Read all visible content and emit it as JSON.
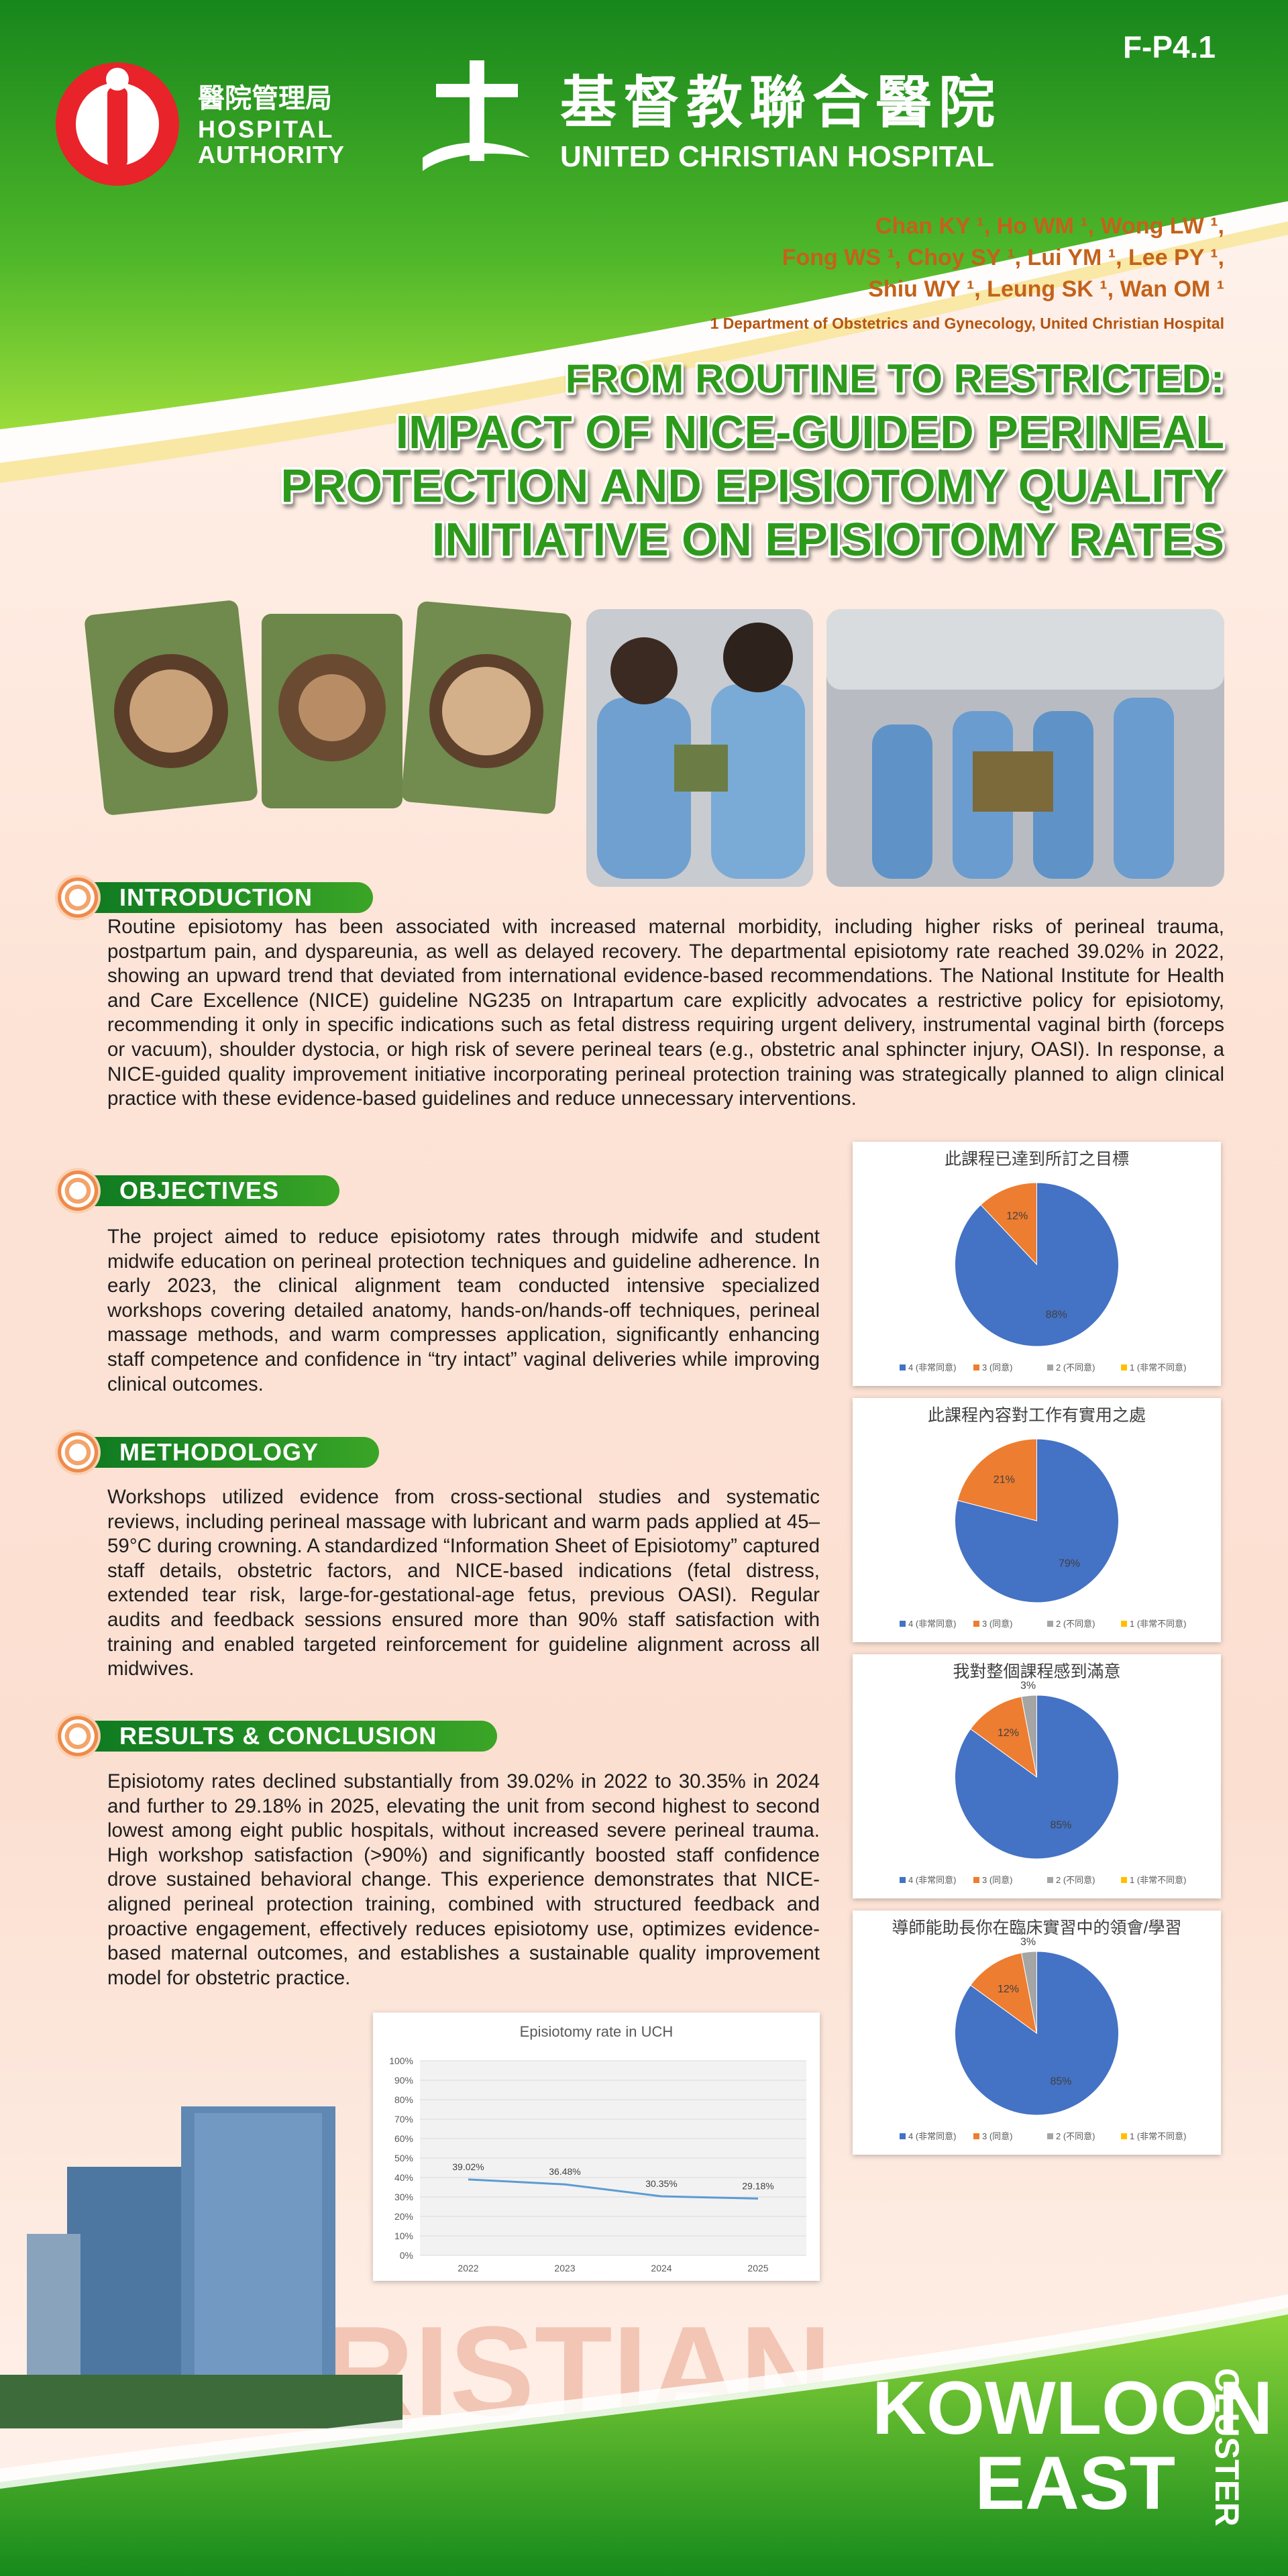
{
  "header": {
    "code": "F-P4.1",
    "ha_name_zh": "醫院管理局",
    "ha_name_en": [
      "HOSPITAL",
      "AUTHORITY"
    ],
    "uch_name_zh": "基督教聯合醫院",
    "uch_name_en": "UNITED CHRISTIAN HOSPITAL"
  },
  "authors": [
    "Chan KY ¹, Ho WM ¹, Wong LW ¹,",
    "Fong WS ¹, Choy SY ¹, Lui YM ¹, Lee PY ¹,",
    "Shiu WY ¹, Leung SK ¹, Wan OM ¹"
  ],
  "affiliation": "1 Department of Obstetrics and Gynecology, United Christian Hospital",
  "title": [
    "FROM ROUTINE TO RESTRICTED:",
    "IMPACT OF NICE-GUIDED PERINEAL",
    "PROTECTION AND EPISIOTOMY QUALITY",
    "INITIATIVE ON EPISIOTOMY RATES"
  ],
  "sections": [
    {
      "heading": "INTRODUCTION",
      "body": "Routine episiotomy has been associated with increased maternal morbidity, including higher risks of perineal trauma, postpartum pain, and dyspareunia, as well as delayed recovery. The departmental episiotomy rate reached 39.02% in 2022, showing an upward trend that deviated from international evidence-based recommendations. The National Institute for Health and Care Excellence (NICE) guideline NG235 on Intrapartum care explicitly advocates a restrictive policy for episiotomy, recommending it only in specific indications such as fetal distress requiring urgent delivery, instrumental vaginal birth (forceps or vacuum), shoulder dystocia, or high risk of severe perineal tears (e.g., obstetric anal sphincter injury, OASI). In response, a NICE-guided quality improvement initiative incorporating perineal protection training was strategically planned to align clinical practice with these evidence-based guidelines and reduce unnecessary interventions."
    },
    {
      "heading": "OBJECTIVES",
      "body": "The project aimed to reduce episiotomy rates through midwife and student midwife education on perineal protection techniques and guideline adherence. In early 2023, the clinical alignment team conducted intensive specialized workshops covering detailed anatomy, hands-on/hands-off techniques, perineal massage methods, and warm compresses application, significantly enhancing staff competence and confidence in “try intact” vaginal deliveries while improving clinical outcomes."
    },
    {
      "heading": "METHODOLOGY",
      "body": "Workshops utilized evidence from cross-sectional studies and systematic reviews, including perineal massage with lubricant and warm pads applied at 45–59°C during crowning. A standardized “Information Sheet of Episiotomy” captured staff details, obstetric factors, and NICE-based indications (fetal distress, extended tear risk, large-for-gestational-age fetus, previous OASI). Regular audits and feedback sessions ensured more than 90% staff satisfaction with training and enabled targeted reinforcement for guideline alignment across all midwives."
    },
    {
      "heading": "RESULTS & CONCLUSION",
      "body": "Episiotomy rates declined substantially from 39.02% in 2022 to 30.35% in 2024 and further to 29.18% in 2025, elevating the unit from second highest to second lowest among eight public hospitals, without increased severe perineal trauma. High workshop satisfaction (>90%) and significantly boosted staff confidence drove sustained behavioral change. This experience demonstrates that NICE-aligned perineal protection training, combined with structured feedback and proactive engagement, effectively reduces episiotomy use, optimizes evidence-based maternal outcomes, and establishes a sustainable quality improvement model for obstetric practice."
    }
  ],
  "watermark": "CHRISTIAN",
  "footer": {
    "line1": "KOWLOON",
    "line2": "EAST",
    "side": "CLUSTER"
  },
  "chart_data": [
    {
      "type": "pie",
      "title": "此課程已達到所訂之目標",
      "categories": [
        "4 (非常同意)",
        "3 (同意)",
        "2 (不同意)",
        "1 (非常不同意)"
      ],
      "values": [
        88,
        12,
        0,
        0
      ],
      "value_labels": [
        "88%",
        "12%",
        null,
        null
      ],
      "colors": [
        "#4472c4",
        "#ed7d31",
        "#a5a5a5",
        "#ffc000"
      ]
    },
    {
      "type": "pie",
      "title": "此課程內容對工作有實用之處",
      "categories": [
        "4 (非常同意)",
        "3 (同意)",
        "2 (不同意)",
        "1 (非常不同意)"
      ],
      "values": [
        79,
        21,
        0,
        0
      ],
      "value_labels": [
        "79%",
        "21%",
        null,
        null
      ],
      "colors": [
        "#4472c4",
        "#ed7d31",
        "#a5a5a5",
        "#ffc000"
      ]
    },
    {
      "type": "pie",
      "title": "我對整個課程感到滿意",
      "categories": [
        "4 (非常同意)",
        "3 (同意)",
        "2 (不同意)",
        "1 (非常不同意)"
      ],
      "values": [
        85,
        12,
        3,
        0
      ],
      "value_labels": [
        "85%",
        "12%",
        "3%",
        null
      ],
      "colors": [
        "#4472c4",
        "#ed7d31",
        "#a5a5a5",
        "#ffc000"
      ]
    },
    {
      "type": "pie",
      "title": "導師能助長你在臨床實習中的領會/學習",
      "categories": [
        "4 (非常同意)",
        "3 (同意)",
        "2 (不同意)",
        "1 (非常不同意)"
      ],
      "values": [
        85,
        12,
        3,
        0
      ],
      "value_labels": [
        "85%",
        "12%",
        "3%",
        null
      ],
      "colors": [
        "#4472c4",
        "#ed7d31",
        "#a5a5a5",
        "#ffc000"
      ]
    },
    {
      "type": "line",
      "title": "Episiotomy rate in UCH",
      "categories": [
        "2022",
        "2023",
        "2024",
        "2025"
      ],
      "values": [
        39.02,
        36.48,
        30.35,
        29.18
      ],
      "value_labels": [
        "39.02%",
        "36.48%",
        "30.35%",
        "29.18%"
      ],
      "color": "#5b9bd5",
      "ylim": [
        0,
        100
      ],
      "yticks": [
        {
          "value": 0,
          "label": "0%"
        },
        {
          "value": 10,
          "label": "10%"
        },
        {
          "value": 20,
          "label": "20%"
        },
        {
          "value": 30,
          "label": "30%"
        },
        {
          "value": 40,
          "label": "40%"
        },
        {
          "value": 50,
          "label": "50%"
        },
        {
          "value": 60,
          "label": "60%"
        },
        {
          "value": 70,
          "label": "70%"
        },
        {
          "value": 80,
          "label": "80%"
        },
        {
          "value": 90,
          "label": "90%"
        },
        {
          "value": 100,
          "label": "100%"
        }
      ],
      "grid": true
    }
  ]
}
